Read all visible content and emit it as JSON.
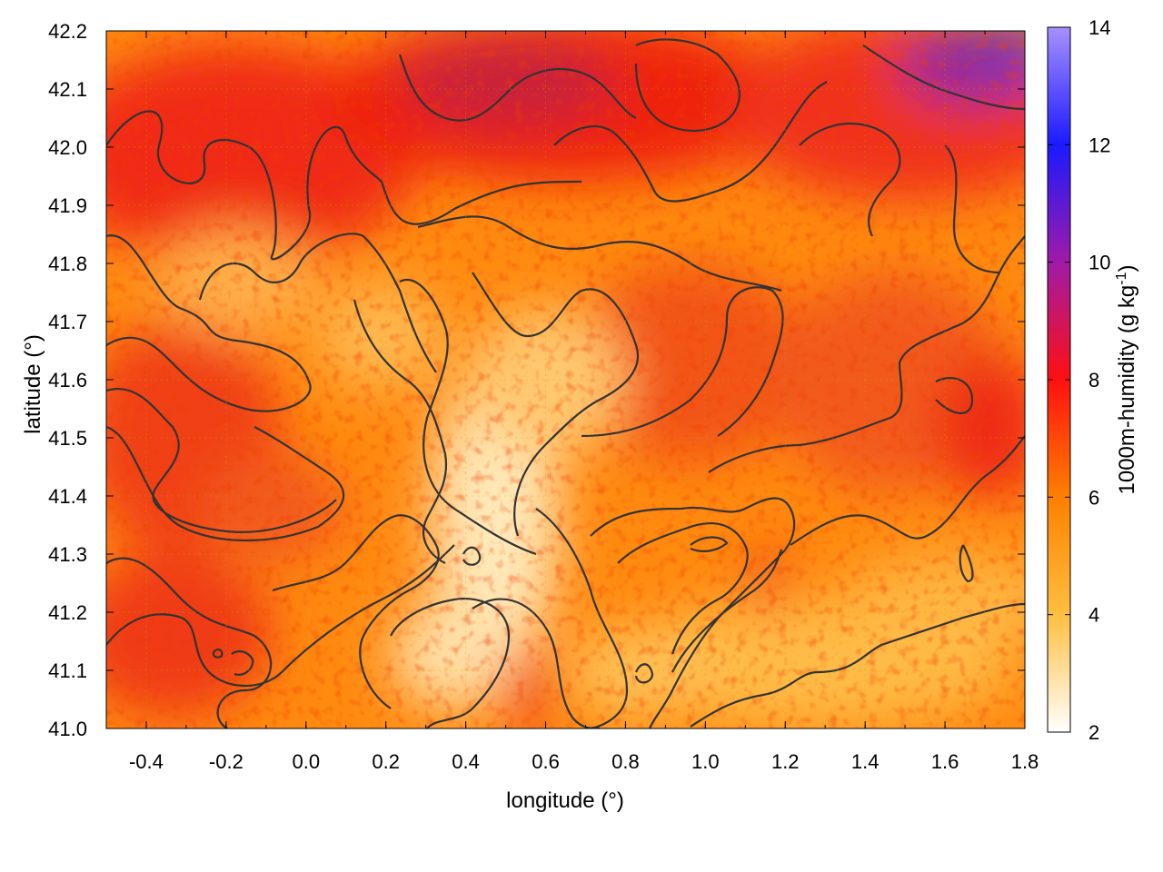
{
  "chart_data": {
    "type": "heatmap",
    "title": "",
    "xlabel": "longitude (°)",
    "ylabel": "latitude (°)",
    "colorbar_label_base": "1000m-humidity (g kg",
    "colorbar_label_exp": "-1",
    "colorbar_label_close": ")",
    "xlim": [
      -0.5,
      1.8
    ],
    "ylim": [
      41.0,
      42.2
    ],
    "xticks": [
      "-0.4",
      "-0.2",
      "0.0",
      "0.2",
      "0.4",
      "0.6",
      "0.8",
      "1.0",
      "1.2",
      "1.4",
      "1.6",
      "1.8"
    ],
    "yticks": [
      "41.0",
      "41.1",
      "41.2",
      "41.3",
      "41.4",
      "41.5",
      "41.6",
      "41.7",
      "41.8",
      "41.9",
      "42.0",
      "42.1",
      "42.2"
    ],
    "colorbar_range": [
      2,
      14
    ],
    "colorbar_ticks": [
      "2",
      "4",
      "6",
      "8",
      "10",
      "12",
      "14"
    ],
    "colorscale": [
      {
        "v": 2,
        "color": "#ffffff"
      },
      {
        "v": 4,
        "color": "#ffbf40"
      },
      {
        "v": 6,
        "color": "#ff8000"
      },
      {
        "v": 8,
        "color": "#ff1010"
      },
      {
        "v": 10,
        "color": "#a01aa8"
      },
      {
        "v": 12,
        "color": "#1a1aff"
      },
      {
        "v": 14,
        "color": "#a890ff"
      }
    ],
    "grid": true,
    "contour_color": "#333333",
    "field_sample": {
      "x": [
        -0.4,
        0.0,
        0.4,
        0.8,
        1.2,
        1.6
      ],
      "y": [
        41.1,
        41.5,
        41.9,
        42.1
      ],
      "z": [
        [
          7.2,
          5.8,
          3.8,
          4.6,
          4.0,
          4.2
        ],
        [
          7.0,
          6.6,
          4.5,
          6.2,
          6.8,
          7.0
        ],
        [
          7.6,
          7.0,
          7.2,
          7.0,
          7.2,
          7.0
        ],
        [
          7.8,
          7.4,
          8.4,
          8.2,
          7.4,
          9.0
        ]
      ]
    }
  }
}
